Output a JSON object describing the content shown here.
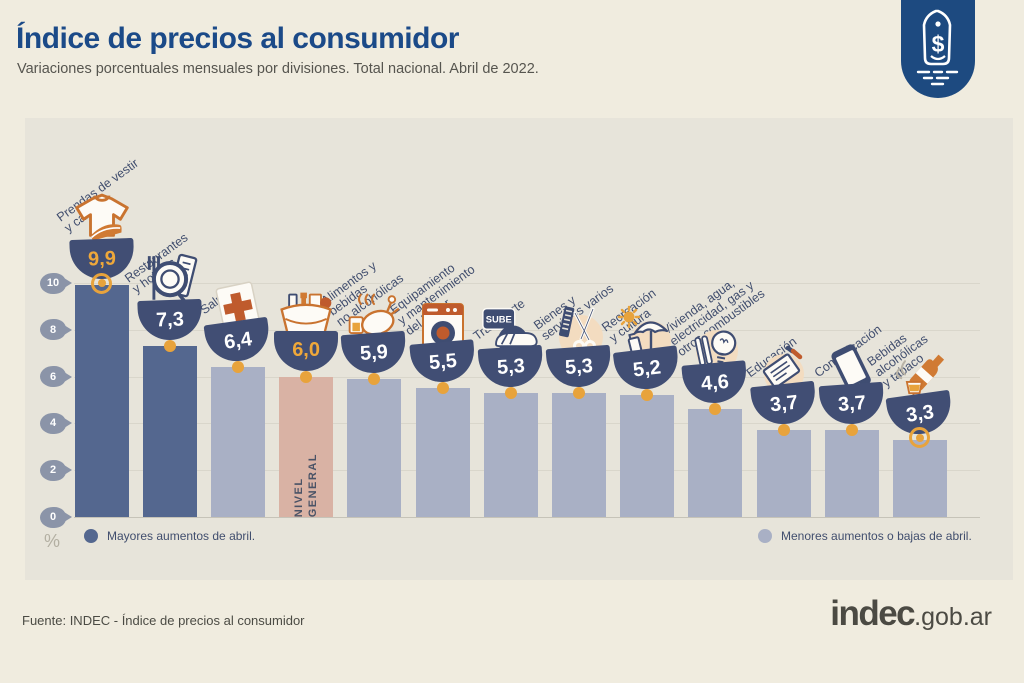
{
  "header": {
    "title": "Índice de precios al consumidor",
    "subtitle": "Variaciones porcentuales mensuales por divisiones. Total nacional. Abril de 2022.",
    "badge_icon": "price-tag-icon",
    "badge_symbol": "$"
  },
  "chart_data": {
    "type": "bar",
    "title": "Índice de precios al consumidor",
    "subtitle": "Variaciones porcentuales mensuales por divisiones. Total nacional. Abril de 2022.",
    "unit": "%",
    "ylim": [
      0,
      10
    ],
    "yticks": [
      10,
      8,
      6,
      4,
      2,
      0
    ],
    "grid": true,
    "categories": [
      {
        "label": "Prendas de vestir y calzado",
        "label_lines": [
          "Prendas de vestir",
          "y calzado"
        ],
        "value": 9.9,
        "value_label": "9,9",
        "group": "mayores",
        "icon": "tshirt-icon",
        "marker": "ring",
        "value_color": "orange"
      },
      {
        "label": "Restaurantes y hoteles",
        "label_lines": [
          "Restaurantes",
          "y hoteles"
        ],
        "value": 7.3,
        "value_label": "7,3",
        "group": "mayores",
        "icon": "restaurant-icon",
        "marker": "dot",
        "value_color": "white"
      },
      {
        "label": "Salud",
        "label_lines": [
          "Salud"
        ],
        "value": 6.4,
        "value_label": "6,4",
        "group": "menores",
        "icon": "health-cross-icon",
        "marker": "dot",
        "value_color": "white"
      },
      {
        "label": "Nivel general",
        "label_lines": [],
        "bar_text_lines": [
          "NIVEL",
          "GENERAL"
        ],
        "value": 6.0,
        "value_label": "6,0",
        "group": "general",
        "icon": "grocery-basket-icon",
        "marker": "dot",
        "value_color": "orange"
      },
      {
        "label": "Alimentos y bebidas no alcohólicas",
        "label_lines": [
          "Alimentos y",
          "bebidas",
          "no alcohólicas"
        ],
        "value": 5.9,
        "value_label": "5,9",
        "group": "menores",
        "icon": "roast-chicken-icon",
        "marker": "dot",
        "value_color": "white"
      },
      {
        "label": "Equipamiento y mantenimiento del hogar",
        "label_lines": [
          "Equipamiento",
          "y mantenimiento",
          "del hogar"
        ],
        "value": 5.5,
        "value_label": "5,5",
        "group": "menores",
        "icon": "washing-machine-icon",
        "marker": "dot",
        "value_color": "white"
      },
      {
        "label": "Transporte",
        "label_lines": [
          "Transporte"
        ],
        "value": 5.3,
        "value_label": "5,3",
        "group": "menores",
        "icon": "sube-bus-icon",
        "icon_text": "SUBE",
        "marker": "dot",
        "value_color": "white"
      },
      {
        "label": "Bienes y servicios varios",
        "label_lines": [
          "Bienes y",
          "servicios varios"
        ],
        "value": 5.3,
        "value_label": "5,3",
        "group": "menores",
        "icon": "comb-scissors-icon",
        "marker": "dot",
        "value_color": "white"
      },
      {
        "label": "Recreación y cultura",
        "label_lines": [
          "Recreación",
          "y cultura"
        ],
        "value": 5.2,
        "value_label": "5,2",
        "group": "menores",
        "icon": "umbrella-sun-icon",
        "marker": "dot",
        "value_color": "white"
      },
      {
        "label": "Vivienda, agua, electricidad, gas y otros combustibles",
        "label_lines": [
          "Vivienda, agua,",
          "electricidad, gas y",
          "otros combustibles"
        ],
        "value": 4.6,
        "value_label": "4,6",
        "group": "menores",
        "icon": "lightbulb-icon",
        "marker": "dot",
        "value_color": "white"
      },
      {
        "label": "Educación",
        "label_lines": [
          "Educación"
        ],
        "value": 3.7,
        "value_label": "3,7",
        "group": "menores",
        "icon": "notebook-icon",
        "marker": "dot",
        "value_color": "white"
      },
      {
        "label": "Comunicación",
        "label_lines": [
          "Comunicación"
        ],
        "value": 3.7,
        "value_label": "3,7",
        "group": "menores",
        "icon": "smartphone-icon",
        "marker": "dot",
        "value_color": "white"
      },
      {
        "label": "Bebidas alcohólicas y tabaco",
        "label_lines": [
          "Bebidas",
          "alcohólicas",
          "y tabaco"
        ],
        "value": 3.3,
        "value_label": "3,3",
        "group": "menores",
        "icon": "wine-bottle-icon",
        "marker": "ring",
        "value_color": "white"
      }
    ]
  },
  "legend": {
    "items": [
      {
        "label": "Mayores aumentos de abril.",
        "color": "#54678f"
      },
      {
        "label": "Menores aumentos o bajas de abril.",
        "color": "#a9b0c5"
      }
    ]
  },
  "footer": {
    "source": "Fuente: INDEC - Índice de precios al consumidor",
    "logo_main": "indec",
    "logo_suffix": ".gob.ar"
  },
  "colors": {
    "accent_orange": "#e8a33c",
    "bar_dark": "#54678f",
    "bar_light": "#a9b0c5",
    "bar_general": "#d9b2a4",
    "bowl_navy": "#414e74",
    "title_blue": "#1b4a88",
    "badge_navy": "#1d4a80",
    "page_bg": "#f0ecdf",
    "panel_bg": "#e7e4da"
  }
}
